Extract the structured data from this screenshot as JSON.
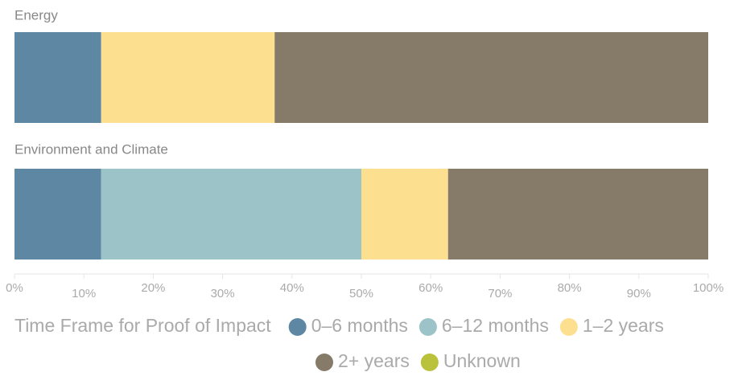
{
  "chart_data": {
    "type": "stacked-barh",
    "categories": [
      "Energy",
      "Environment and Climate"
    ],
    "legend_title": "Time Frame for Proof of Impact",
    "series": [
      {
        "name": "0–6 months",
        "color": "#5d87a3",
        "values": [
          12.5,
          12.5
        ]
      },
      {
        "name": "6–12 months",
        "color": "#9bc3c8",
        "values": [
          0,
          37.5
        ]
      },
      {
        "name": "1–2 years",
        "color": "#fde08f",
        "values": [
          25,
          12.5
        ]
      },
      {
        "name": "2+ years",
        "color": "#867b69",
        "values": [
          62.5,
          37.5
        ]
      },
      {
        "name": "Unknown",
        "color": "#b9c23a",
        "values": [
          0,
          0
        ]
      }
    ],
    "xlim": [
      0,
      100
    ],
    "xticks": [
      {
        "value": 0,
        "label": "0%"
      },
      {
        "value": 10,
        "label": "10%"
      },
      {
        "value": 20,
        "label": "20%"
      },
      {
        "value": 30,
        "label": "30%"
      },
      {
        "value": 40,
        "label": "40%"
      },
      {
        "value": 50,
        "label": "50%"
      },
      {
        "value": 60,
        "label": "60%"
      },
      {
        "value": 70,
        "label": "70%"
      },
      {
        "value": 80,
        "label": "80%"
      },
      {
        "value": 90,
        "label": "90%"
      },
      {
        "value": 100,
        "label": "100%"
      }
    ]
  }
}
